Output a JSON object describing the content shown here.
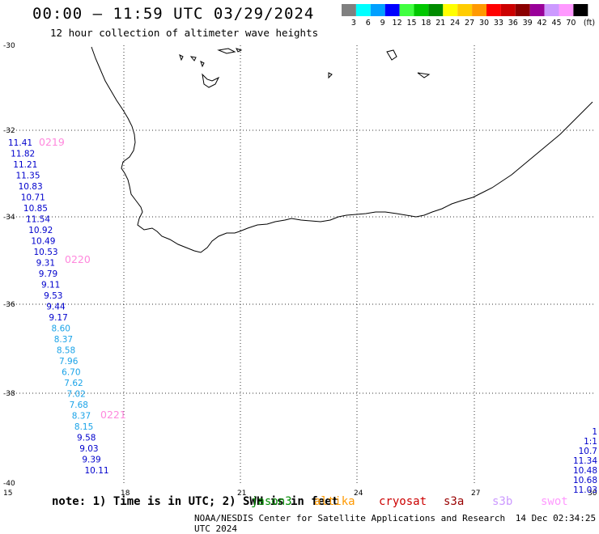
{
  "header": {
    "title": "00:00 – 11:59 UTC 03/29/2024",
    "subtitle": "12 hour collection of altimeter wave heights"
  },
  "legend": {
    "unit": "(ft)",
    "bins": [
      {
        "label": "3",
        "color": "#808080"
      },
      {
        "label": "6",
        "color": "#00ffff"
      },
      {
        "label": "9",
        "color": "#00a0ff"
      },
      {
        "label": "12",
        "color": "#0000ff"
      },
      {
        "label": "15",
        "color": "#40ff40"
      },
      {
        "label": "18",
        "color": "#00c800"
      },
      {
        "label": "21",
        "color": "#008c00"
      },
      {
        "label": "24",
        "color": "#ffff00"
      },
      {
        "label": "27",
        "color": "#ffcc00"
      },
      {
        "label": "30",
        "color": "#ff9900"
      },
      {
        "label": "33",
        "color": "#ff0000"
      },
      {
        "label": "36",
        "color": "#cc0000"
      },
      {
        "label": "39",
        "color": "#8b0000"
      },
      {
        "label": "42",
        "color": "#990099"
      },
      {
        "label": "45",
        "color": "#cc99ff"
      },
      {
        "label": "70",
        "color": "#ff99ff"
      },
      {
        "label": "",
        "color": "#000000"
      }
    ]
  },
  "axes": {
    "lat_labels": [
      "-30",
      "-32",
      "-34",
      "-36",
      "-38",
      "-40"
    ],
    "lon_labels": [
      "15",
      "18",
      "21",
      "24",
      "27",
      "30"
    ]
  },
  "tracks": {
    "pass_labels": [
      {
        "text": "0219",
        "color": "#ff88dd"
      },
      {
        "text": "0220",
        "color": "#ff88dd"
      },
      {
        "text": "0221",
        "color": "#ff88dd"
      }
    ],
    "west_track": [
      {
        "text": "11.41",
        "color": "#0000cc"
      },
      {
        "text": "11.82",
        "color": "#0000cc"
      },
      {
        "text": "11.21",
        "color": "#0000cc"
      },
      {
        "text": "11.35",
        "color": "#0000cc"
      },
      {
        "text": "10.83",
        "color": "#0000cc"
      },
      {
        "text": "10.71",
        "color": "#0000cc"
      },
      {
        "text": "10.85",
        "color": "#0000cc"
      },
      {
        "text": "11.54",
        "color": "#0000cc"
      },
      {
        "text": "10.92",
        "color": "#0000cc"
      },
      {
        "text": "10.49",
        "color": "#0000cc"
      },
      {
        "text": "10.53",
        "color": "#0000cc"
      },
      {
        "text": "9.31",
        "color": "#0000cc"
      },
      {
        "text": "9.79",
        "color": "#0000cc"
      },
      {
        "text": "9.11",
        "color": "#0000cc"
      },
      {
        "text": "9.53",
        "color": "#0000cc"
      },
      {
        "text": "9.44",
        "color": "#0000cc"
      },
      {
        "text": "9.17",
        "color": "#0000cc"
      },
      {
        "text": "8.60",
        "color": "#1aa3e8"
      },
      {
        "text": "8.37",
        "color": "#1aa3e8"
      },
      {
        "text": "8.58",
        "color": "#1aa3e8"
      },
      {
        "text": "7.96",
        "color": "#1aa3e8"
      },
      {
        "text": "6.70",
        "color": "#1aa3e8"
      },
      {
        "text": "7.62",
        "color": "#1aa3e8"
      },
      {
        "text": "7.02",
        "color": "#1aa3e8"
      },
      {
        "text": "7.68",
        "color": "#1aa3e8"
      },
      {
        "text": "8.37",
        "color": "#1aa3e8"
      },
      {
        "text": "8.15",
        "color": "#1aa3e8"
      },
      {
        "text": "9.58",
        "color": "#0000cc"
      },
      {
        "text": "9.03",
        "color": "#0000cc"
      },
      {
        "text": "9.39",
        "color": "#0000cc"
      },
      {
        "text": "10.11",
        "color": "#0000cc"
      }
    ],
    "east_track": [
      {
        "text": "1",
        "color": "#0000cc"
      },
      {
        "text": "1:1",
        "color": "#0000cc"
      },
      {
        "text": "10.7",
        "color": "#0000cc"
      },
      {
        "text": "11.34",
        "color": "#0000cc"
      },
      {
        "text": "10.48",
        "color": "#0000cc"
      },
      {
        "text": "10.68",
        "color": "#0000cc"
      },
      {
        "text": "11.03",
        "color": "#0000cc"
      }
    ]
  },
  "note": {
    "text": "note:  1) Time is in UTC; 2) SWH is in feet"
  },
  "satellites": [
    {
      "name": "jason3",
      "color": "#008c00"
    },
    {
      "name": "altika",
      "color": "#ff9900"
    },
    {
      "name": "cryosat",
      "color": "#cc0000"
    },
    {
      "name": "s3a",
      "color": "#990000"
    },
    {
      "name": "s3b",
      "color": "#cc99ff"
    },
    {
      "name": "swot",
      "color": "#ff99ff"
    }
  ],
  "footer": {
    "credit": "NOAA/NESDIS Center for Satellite Applications and Research",
    "timestamp": "14 Dec 02:34:25 UTC 2024"
  }
}
